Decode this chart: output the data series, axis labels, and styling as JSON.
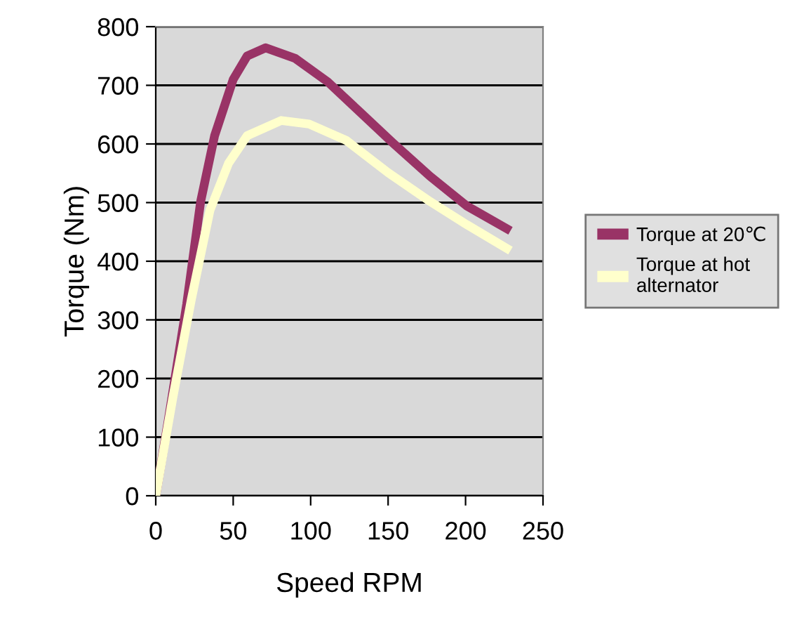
{
  "chart_data": {
    "type": "line",
    "xlabel": "Speed RPM",
    "ylabel": "Torque (Nm)",
    "xlim": [
      0,
      250
    ],
    "xticks": [
      0,
      50,
      100,
      150,
      200,
      250
    ],
    "ylim": [
      0,
      800
    ],
    "yticks": [
      0,
      100,
      200,
      300,
      400,
      500,
      600,
      700,
      800
    ],
    "grid": "y",
    "legend": "right",
    "marker": "none",
    "line_style": "solid",
    "series": [
      {
        "name": "Torque at 20℃",
        "color": "#993366",
        "x": [
          0,
          8,
          20,
          29,
          38,
          50,
          59,
          71,
          90,
          111,
          132,
          153,
          177,
          201,
          229
        ],
        "values": [
          0,
          127,
          327,
          502,
          614,
          710,
          750,
          764,
          746,
          706,
          654,
          602,
          545,
          494,
          452
        ]
      },
      {
        "name": "Torque at hot alternator",
        "color": "#ffffcc",
        "x": [
          0,
          11,
          23,
          35,
          47,
          59,
          81,
          99,
          123,
          150,
          177,
          201,
          229
        ],
        "values": [
          0,
          167,
          335,
          487,
          567,
          614,
          640,
          634,
          606,
          551,
          502,
          462,
          418
        ]
      }
    ]
  }
}
